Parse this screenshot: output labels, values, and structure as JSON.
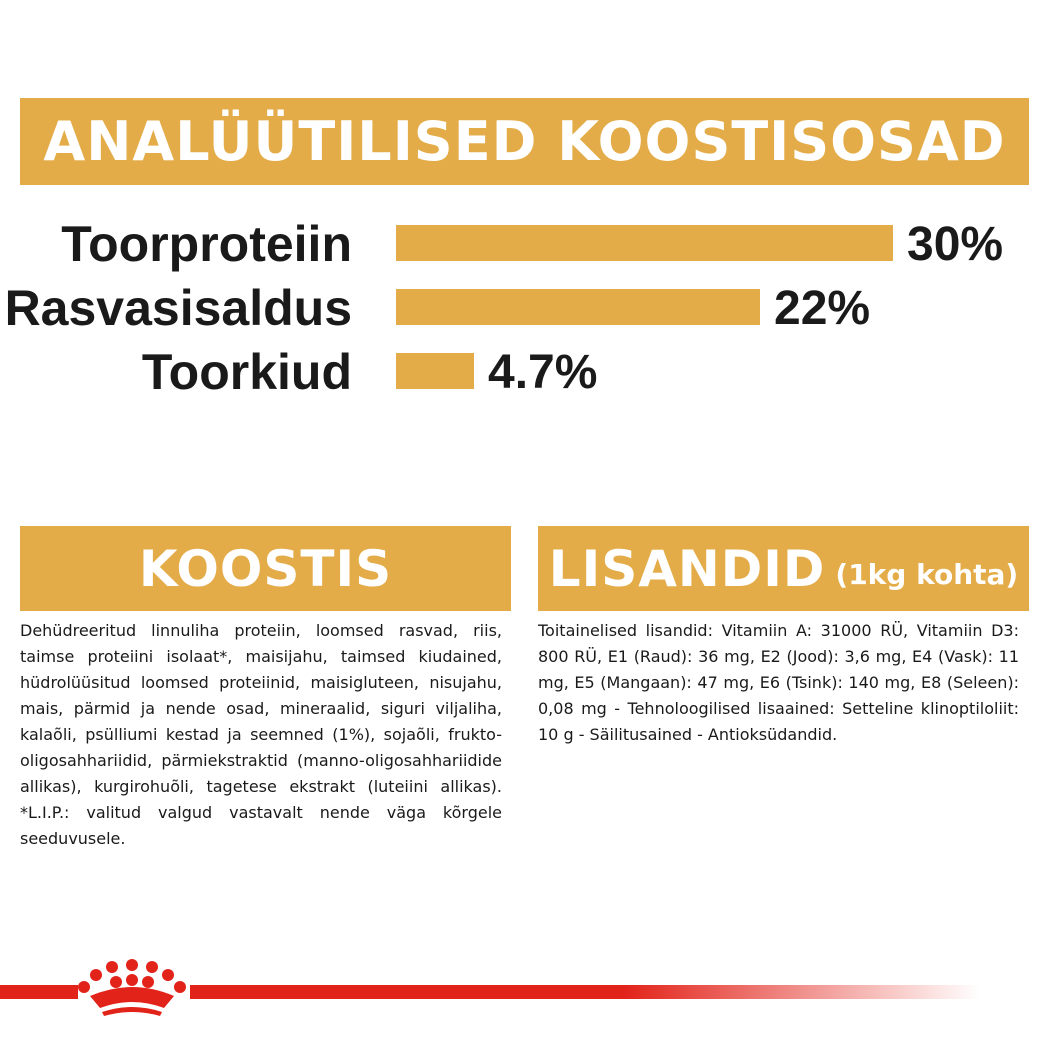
{
  "header": {
    "title": "ANALÜÜTILISED KOOSTISOSAD"
  },
  "chart_data": {
    "type": "bar",
    "orientation": "horizontal",
    "categories": [
      "Toorproteiin",
      "Rasvasisaldus",
      "Toorkiud"
    ],
    "values": [
      30,
      22,
      4.7
    ],
    "value_labels": [
      "30%",
      "22%",
      "4.7%"
    ],
    "unit": "%",
    "title": "ANALÜÜTILISED KOOSTISOSAD",
    "xlabel": "",
    "ylabel": "",
    "xlim": [
      0,
      30
    ],
    "grid": false,
    "bar_color": "#e4ac48"
  },
  "koostis": {
    "title": "KOOSTIS",
    "text": "Dehüdreeritud linnuliha proteiin, loomsed rasvad, riis, taimse proteiini isolaat*, maisijahu, taimsed kiudained, hüdrolüüsitud loomsed proteiinid, maisigluteen, nisujahu, mais, pärmid ja nende osad, mineraalid, siguri viljaliha, kalaõli, psülliumi kestad ja seemned (1%), sojaõli, frukto-oligosahhariidid, pärmiekstraktid (manno-oligosahhariidide allikas), kurgirohuõli, tagetese ekstrakt (luteiini allikas). *L.I.P.: valitud valgud vastavalt nende väga kõrgele seeduvusele."
  },
  "lisandid": {
    "title": "LISANDID",
    "subtitle": "(1kg kohta)",
    "text": "Toitainelised lisandid: Vitamiin A: 31000 RÜ, Vitamiin D3: 800 RÜ, E1 (Raud): 36 mg, E2 (Jood): 3,6 mg, E4 (Vask): 11 mg, E5 (Mangaan): 47 mg, E6 (Tsink): 140 mg, E8 (Seleen): 0,08 mg - Tehnoloogilised lisaained: Setteline klinoptiloliit: 10 g - Säilitusained - Antioksüdandid."
  },
  "colors": {
    "accent": "#e4ac48",
    "brand_red": "#e2231a",
    "text": "#1a1a1a"
  },
  "footer": {
    "logo_icon": "crown-logo-icon"
  }
}
